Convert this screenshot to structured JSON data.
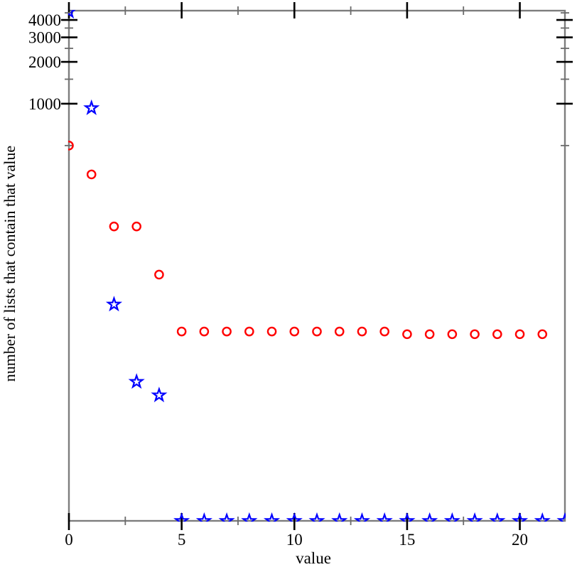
{
  "chart_data": {
    "type": "scatter",
    "title": "",
    "xlabel": "value",
    "ylabel": "number of lists that contain that value",
    "grid": false,
    "legend": "none",
    "x_axis": {
      "scale": "linear",
      "min": 0,
      "max": 22,
      "major_ticks": [
        0,
        5,
        10,
        15,
        20
      ],
      "major_tick_labels": [
        "0",
        "5",
        "10",
        "15",
        "20"
      ],
      "minor_ticks": [
        2.5,
        7.5,
        12.5,
        17.5
      ]
    },
    "y_axis": {
      "scale": "log",
      "min": 1,
      "max": 4667,
      "major_ticks": [
        1000,
        2000,
        3000,
        4000
      ],
      "major_tick_labels": [
        "1000",
        "2000",
        "3000",
        "4000"
      ],
      "minor_ticks": [
        500,
        1500,
        2500,
        3500,
        4500
      ]
    },
    "colors": {
      "frame": "#7d7d7d",
      "major_tick": "#000000",
      "minor_tick": "#6b6b6b",
      "text": "#000000",
      "circles_series": "#ff0000",
      "stars_series": "#0000ff"
    },
    "series": [
      {
        "name": "circles",
        "marker": "circle",
        "color": "#ff0000",
        "points": [
          [
            0,
            500
          ],
          [
            1,
            310
          ],
          [
            2,
            131
          ],
          [
            3,
            131
          ],
          [
            4,
            59
          ],
          [
            5,
            23
          ],
          [
            6,
            23
          ],
          [
            7,
            23
          ],
          [
            8,
            23
          ],
          [
            9,
            23
          ],
          [
            10,
            23
          ],
          [
            11,
            23
          ],
          [
            12,
            23
          ],
          [
            13,
            23
          ],
          [
            14,
            23
          ],
          [
            15,
            22
          ],
          [
            16,
            22
          ],
          [
            17,
            22
          ],
          [
            18,
            22
          ],
          [
            19,
            22
          ],
          [
            20,
            22
          ],
          [
            21,
            22
          ]
        ]
      },
      {
        "name": "stars",
        "marker": "star",
        "color": "#0000ff",
        "points": [
          [
            0,
            4600
          ],
          [
            1,
            930
          ],
          [
            2,
            36
          ],
          [
            3,
            10
          ],
          [
            4,
            8
          ],
          [
            5,
            1
          ],
          [
            6,
            1
          ],
          [
            7,
            1
          ],
          [
            8,
            1
          ],
          [
            9,
            1
          ],
          [
            10,
            1
          ],
          [
            11,
            1
          ],
          [
            12,
            1
          ],
          [
            13,
            1
          ],
          [
            14,
            1
          ],
          [
            15,
            1
          ],
          [
            16,
            1
          ],
          [
            17,
            1
          ],
          [
            18,
            1
          ],
          [
            19,
            1
          ],
          [
            20,
            1
          ],
          [
            21,
            1
          ],
          [
            22,
            1
          ]
        ]
      }
    ]
  }
}
